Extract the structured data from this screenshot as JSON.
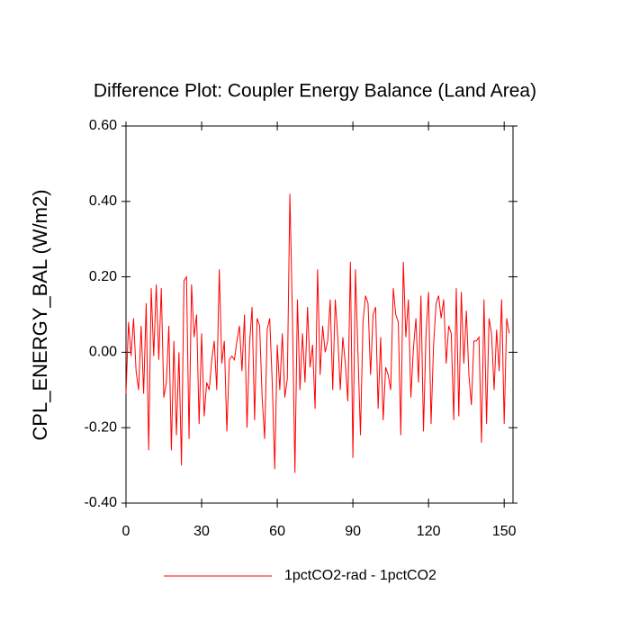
{
  "chart_data": {
    "type": "line",
    "title": "Difference Plot: Coupler Energy Balance (Land Area)",
    "y_label": "CPL_ENERGY_BAL  (W/m2)",
    "x": [
      0,
      1,
      2,
      3,
      4,
      5,
      6,
      7,
      8,
      9,
      10,
      11,
      12,
      13,
      14,
      15,
      16,
      17,
      18,
      19,
      20,
      21,
      22,
      23,
      24,
      25,
      26,
      27,
      28,
      29,
      30,
      31,
      32,
      33,
      34,
      35,
      36,
      37,
      38,
      39,
      40,
      41,
      42,
      43,
      44,
      45,
      46,
      47,
      48,
      49,
      50,
      51,
      52,
      53,
      54,
      55,
      56,
      57,
      58,
      59,
      60,
      61,
      62,
      63,
      64,
      65,
      66,
      67,
      68,
      69,
      70,
      71,
      72,
      73,
      74,
      75,
      76,
      77,
      78,
      79,
      80,
      81,
      82,
      83,
      84,
      85,
      86,
      87,
      88,
      89,
      90,
      91,
      92,
      93,
      94,
      95,
      96,
      97,
      98,
      99,
      100,
      101,
      102,
      103,
      104,
      105,
      106,
      107,
      108,
      109,
      110,
      111,
      112,
      113,
      114,
      115,
      116,
      117,
      118,
      119,
      120,
      121,
      122,
      123,
      124,
      125,
      126,
      127,
      128,
      129,
      130,
      131,
      132,
      133,
      134,
      135,
      136,
      137,
      138,
      139,
      140,
      141,
      142,
      143,
      144,
      145,
      146,
      147,
      148,
      149,
      150,
      151,
      152
    ],
    "series": [
      {
        "name": "1pctCO2-rad - 1pctCO2",
        "color": "#ff0000",
        "values": [
          -0.11,
          0.08,
          -0.01,
          0.09,
          -0.05,
          -0.1,
          0.07,
          -0.11,
          0.13,
          -0.26,
          0.17,
          -0.01,
          0.18,
          -0.02,
          0.17,
          -0.12,
          -0.08,
          0.07,
          -0.26,
          0.03,
          -0.22,
          0.0,
          -0.3,
          0.19,
          0.2,
          -0.23,
          0.18,
          0.04,
          0.1,
          -0.19,
          0.05,
          -0.17,
          -0.08,
          -0.1,
          -0.02,
          0.03,
          -0.1,
          0.22,
          -0.03,
          0.03,
          -0.21,
          -0.02,
          -0.01,
          -0.02,
          0.03,
          0.07,
          -0.05,
          0.1,
          -0.2,
          0.02,
          0.12,
          -0.18,
          0.09,
          0.07,
          -0.12,
          -0.23,
          0.06,
          0.09,
          -0.08,
          -0.31,
          0.02,
          -0.1,
          0.05,
          -0.12,
          -0.07,
          0.42,
          0.1,
          -0.32,
          0.14,
          -0.1,
          0.05,
          -0.08,
          0.12,
          -0.04,
          0.02,
          -0.15,
          0.22,
          -0.06,
          0.07,
          0.0,
          0.03,
          0.14,
          -0.1,
          0.14,
          0.04,
          -0.1,
          0.04,
          -0.03,
          -0.13,
          0.24,
          -0.28,
          0.22,
          0.0,
          -0.22,
          0.08,
          0.15,
          0.13,
          -0.06,
          0.1,
          0.12,
          -0.15,
          0.04,
          -0.18,
          -0.04,
          -0.06,
          -0.1,
          0.17,
          0.1,
          0.08,
          -0.22,
          0.24,
          0.04,
          0.14,
          -0.12,
          0.01,
          0.09,
          -0.08,
          0.15,
          -0.21,
          0.05,
          0.16,
          -0.19,
          0.02,
          0.13,
          0.15,
          0.09,
          0.14,
          -0.03,
          0.07,
          0.05,
          -0.18,
          0.17,
          -0.17,
          0.16,
          -0.03,
          0.11,
          -0.06,
          -0.14,
          0.03,
          0.03,
          0.04,
          -0.24,
          0.14,
          -0.19,
          0.09,
          0.05,
          -0.1,
          0.06,
          -0.05,
          0.14,
          -0.19,
          0.09,
          0.05
        ]
      }
    ],
    "xlim": [
      0,
      153.5
    ],
    "ylim": [
      -0.4,
      0.6
    ],
    "xticks": [
      0,
      30,
      60,
      90,
      120,
      150
    ],
    "yticks": [
      {
        "value": -0.4,
        "label": "-0.40"
      },
      {
        "value": -0.2,
        "label": "-0.20"
      },
      {
        "value": 0,
        "label": "0.00"
      },
      {
        "value": 0.2,
        "label": "0.20"
      },
      {
        "value": 0.4,
        "label": "0.40"
      },
      {
        "value": 0.6,
        "label": "0.60"
      }
    ],
    "grid": false
  }
}
